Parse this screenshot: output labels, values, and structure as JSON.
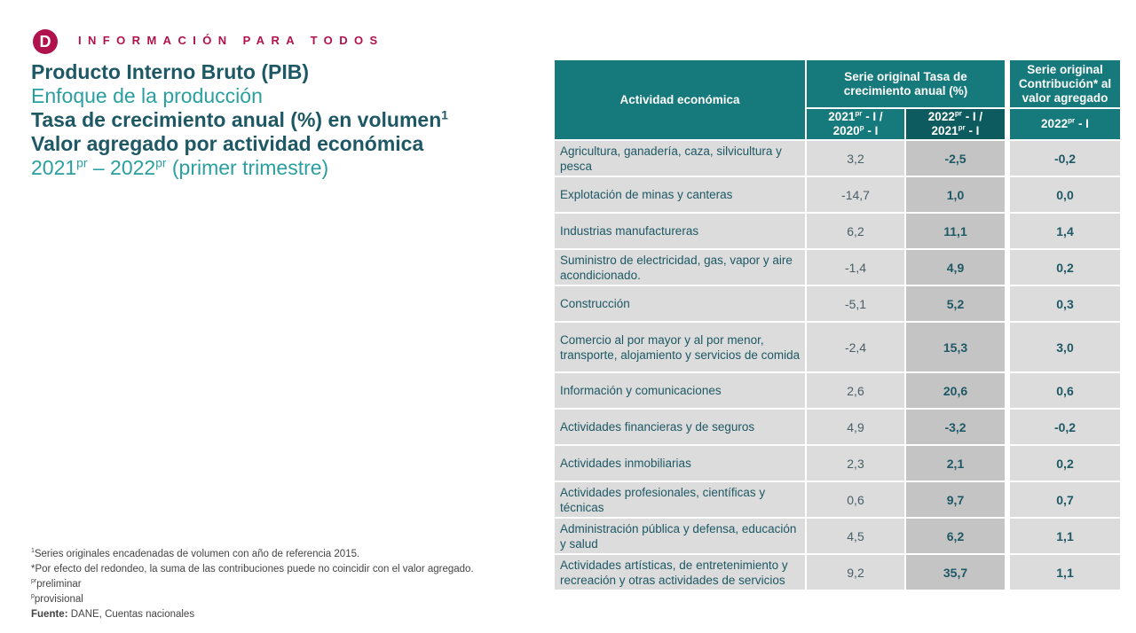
{
  "header": {
    "logo_letter": "D",
    "tagline": "INFORMACIÓN PARA TODOS"
  },
  "titles": {
    "line1": "Producto Interno Bruto (PIB)",
    "line2": "Enfoque de la producción",
    "line3": "Tasa de crecimiento anual (%) en volumen",
    "line3_sup": "1",
    "line4": "Valor agregado por actividad económica",
    "line5_a": "2021",
    "line5_a_sup": "pr",
    "line5_b": " – 2022",
    "line5_b_sup": "pr",
    "line5_c": " (primer trimestre)"
  },
  "table": {
    "col_activity": "Actividad económica",
    "group1": "Serie original Tasa de crecimiento anual (%)",
    "group2": "Serie original Contribución* al valor agregado",
    "sub1": "2021pr - I / 2020p - I",
    "sub2": "2022pr - I / 2021pr - I",
    "sub3": "2022pr - I",
    "rows": [
      {
        "name": "Agricultura, ganadería, caza, silvicultura y pesca",
        "v1": "3,2",
        "v2": "-2,5",
        "v3": "-0,2"
      },
      {
        "name": "Explotación de minas y canteras",
        "v1": "-14,7",
        "v2": "1,0",
        "v3": "0,0"
      },
      {
        "name": "Industrias manufactureras",
        "v1": "6,2",
        "v2": "11,1",
        "v3": "1,4"
      },
      {
        "name": "Suministro de electricidad, gas, vapor y aire acondicionado.",
        "v1": "-1,4",
        "v2": "4,9",
        "v3": "0,2"
      },
      {
        "name": "Construcción",
        "v1": "-5,1",
        "v2": "5,2",
        "v3": "0,3"
      },
      {
        "name": "Comercio al por mayor y al por menor, transporte, alojamiento y servicios de comida",
        "v1": "-2,4",
        "v2": "15,3",
        "v3": "3,0"
      },
      {
        "name": "Información y comunicaciones",
        "v1": "2,6",
        "v2": "20,6",
        "v3": "0,6"
      },
      {
        "name": "Actividades financieras y de seguros",
        "v1": "4,9",
        "v2": "-3,2",
        "v3": "-0,2"
      },
      {
        "name": "Actividades inmobiliarias",
        "v1": "2,3",
        "v2": "2,1",
        "v3": "0,2"
      },
      {
        "name": "Actividades profesionales, científicas y técnicas",
        "v1": "0,6",
        "v2": "9,7",
        "v3": "0,7"
      },
      {
        "name": "Administración pública y defensa, educación y salud",
        "v1": "4,5",
        "v2": "6,2",
        "v3": "1,1"
      },
      {
        "name": "Actividades artísticas, de entretenimiento y recreación y otras actividades de servicios",
        "v1": "9,2",
        "v2": "35,7",
        "v3": "1,1"
      }
    ]
  },
  "notes": {
    "n1_sup": "1",
    "n1": "Series originales encadenadas de volumen con año de referencia 2015.",
    "n2": "*Por efecto del redondeo, la suma de las contribuciones puede no coincidir con el valor agregado.",
    "n3_sup": "pr",
    "n3": "preliminar",
    "n4_sup": "p",
    "n4": "provisional",
    "source_label": "Fuente:",
    "source": " DANE, Cuentas nacionales"
  }
}
